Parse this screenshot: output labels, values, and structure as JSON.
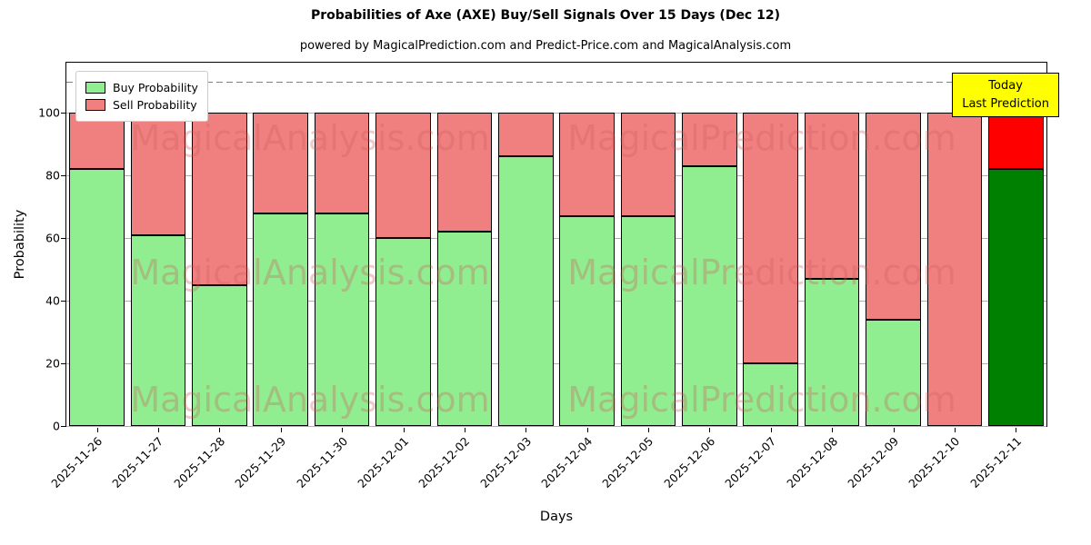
{
  "chart_data": {
    "type": "bar",
    "stacked": true,
    "title": "Probabilities of Axe (AXE) Buy/Sell Signals Over 15 Days (Dec 12)",
    "subtitle": "powered by MagicalPrediction.com and Predict-Price.com and MagicalAnalysis.com",
    "xlabel": "Days",
    "ylabel": "Probability",
    "ylim": [
      0,
      116
    ],
    "yticks": [
      0,
      20,
      40,
      60,
      80,
      100
    ],
    "grid": true,
    "dashed_line_y": 110,
    "legend_position": "upper left",
    "categories": [
      "2025-11-26",
      "2025-11-27",
      "2025-11-28",
      "2025-11-29",
      "2025-11-30",
      "2025-12-01",
      "2025-12-02",
      "2025-12-03",
      "2025-12-04",
      "2025-12-05",
      "2025-12-06",
      "2025-12-07",
      "2025-12-08",
      "2025-12-09",
      "2025-12-10",
      "2025-12-11"
    ],
    "series": [
      {
        "name": "Buy Probability",
        "color": "#90EE90",
        "values": [
          82,
          61,
          45,
          68,
          68,
          60,
          62,
          86,
          67,
          67,
          83,
          20,
          47,
          34,
          0,
          82
        ]
      },
      {
        "name": "Sell Probability",
        "color": "#F08080",
        "values": [
          18,
          39,
          55,
          32,
          32,
          40,
          38,
          14,
          33,
          33,
          17,
          80,
          53,
          66,
          100,
          18
        ]
      }
    ],
    "today_bar": {
      "index": 15,
      "buy_color": "#008000",
      "sell_color": "#FF0000"
    },
    "annotation": {
      "line1": "Today",
      "line2": "Last Prediction",
      "bg_color": "#FFFF00"
    },
    "watermarks": [
      "MagicalAnalysis.com",
      "MagicalPrediction.com"
    ],
    "colors": {
      "grid": "#b0b0b0",
      "dashed_line": "#808080",
      "bar_edge": "#000000",
      "plot_border": "#000000"
    }
  }
}
